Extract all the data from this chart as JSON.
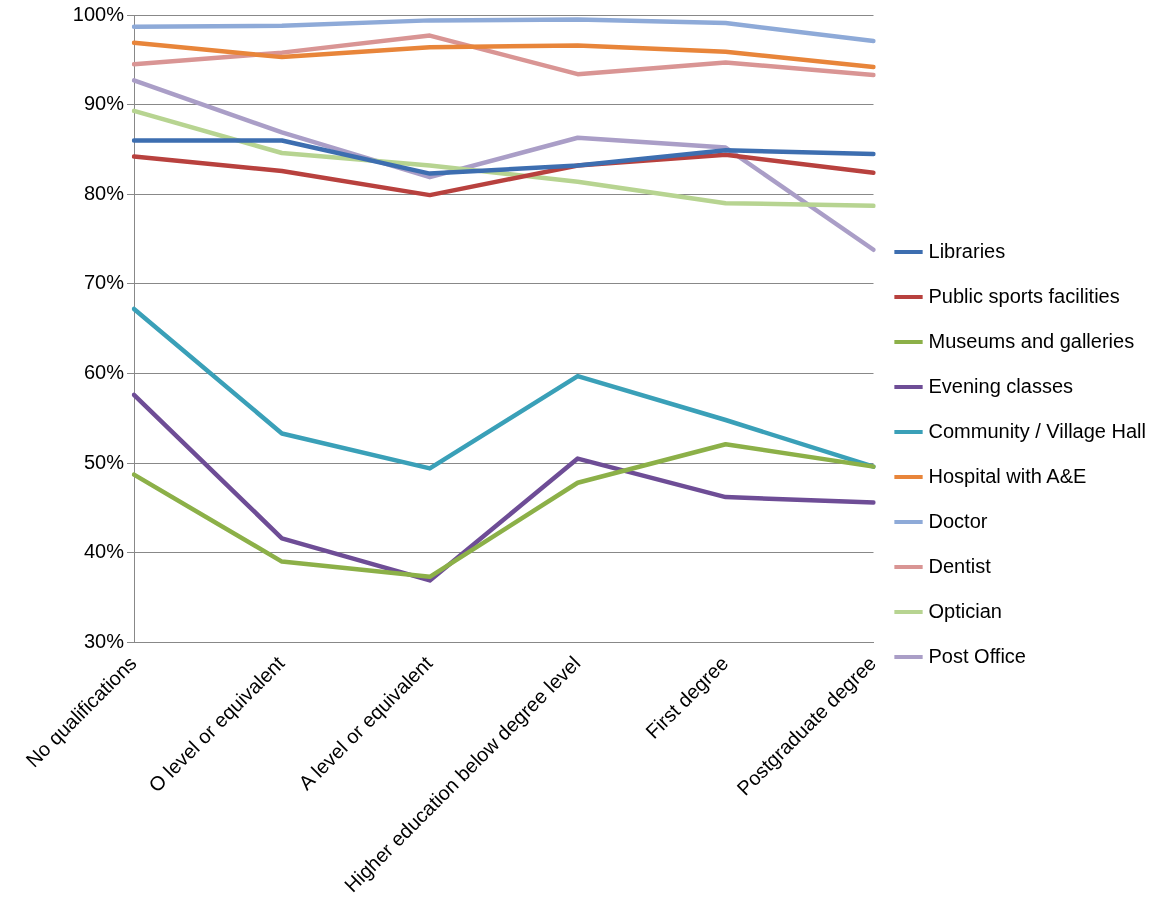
{
  "chart_data": {
    "type": "line",
    "categories": [
      "No qualifications",
      "O level or equivalent",
      "A level or equivalent",
      "Higher education below degree level",
      "First degree",
      "Postgraduate degree"
    ],
    "ylim": [
      30,
      100
    ],
    "yticks": [
      {
        "value": 30,
        "label": "30%"
      },
      {
        "value": 40,
        "label": "40%"
      },
      {
        "value": 50,
        "label": "50%"
      },
      {
        "value": 60,
        "label": "60%"
      },
      {
        "value": 70,
        "label": "70%"
      },
      {
        "value": 80,
        "label": "80%"
      },
      {
        "value": 90,
        "label": "90%"
      },
      {
        "value": 100,
        "label": "100%"
      }
    ],
    "grid": "y",
    "legend": "right",
    "marker": "none",
    "line_style": "solid",
    "series": [
      {
        "name": "Libraries",
        "color": "#3d6eb0",
        "values": [
          86,
          86,
          82.3,
          83.2,
          84.9,
          84.5
        ]
      },
      {
        "name": "Public sports facilities",
        "color": "#b8413e",
        "values": [
          84.2,
          82.6,
          79.9,
          83.2,
          84.4,
          82.4
        ]
      },
      {
        "name": "Museums and galleries",
        "color": "#8cb048",
        "values": [
          48.7,
          39,
          37.3,
          47.8,
          52.1,
          49.6
        ]
      },
      {
        "name": "Evening classes",
        "color": "#6e4d96",
        "values": [
          57.6,
          41.6,
          36.9,
          50.5,
          46.2,
          45.6
        ]
      },
      {
        "name": "Community / Village Hall",
        "color": "#3aa0b8",
        "values": [
          67.2,
          53.3,
          49.4,
          59.7,
          54.8,
          49.6
        ]
      },
      {
        "name": "Hospital with A&E",
        "color": "#e8853a",
        "values": [
          96.9,
          95.3,
          96.4,
          96.6,
          95.9,
          94.2
        ]
      },
      {
        "name": "Doctor",
        "color": "#8eaad8",
        "values": [
          98.7,
          98.8,
          99.4,
          99.5,
          99.1,
          97.1
        ]
      },
      {
        "name": "Dentist",
        "color": "#d99594",
        "values": [
          94.5,
          95.8,
          97.7,
          93.4,
          94.7,
          93.3
        ]
      },
      {
        "name": "Optician",
        "color": "#b7d491",
        "values": [
          89.3,
          84.6,
          83.2,
          81.4,
          79,
          78.7
        ]
      },
      {
        "name": "Post Office",
        "color": "#aa9ec7",
        "values": [
          92.7,
          86.9,
          81.9,
          86.3,
          85.2,
          73.8
        ]
      }
    ]
  }
}
